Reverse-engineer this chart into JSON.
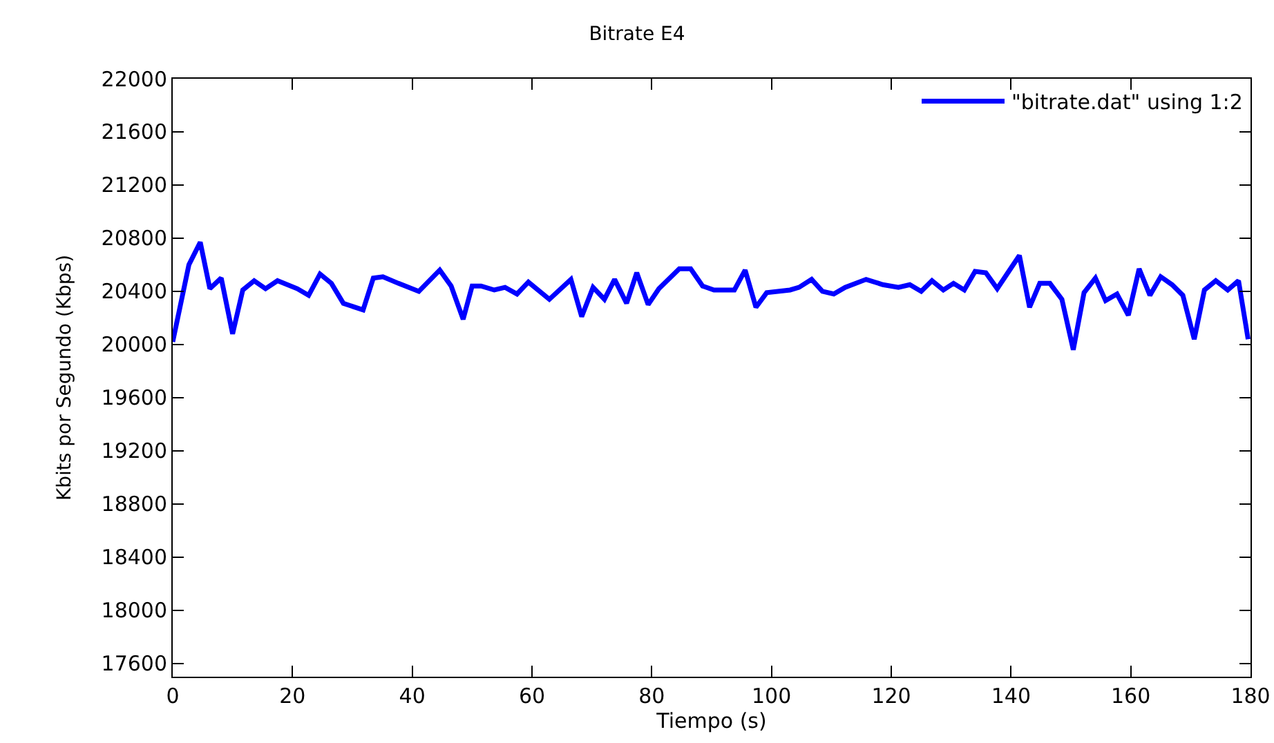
{
  "chart_data": {
    "type": "line",
    "title": "Bitrate E4",
    "xlabel": "Tiempo (s)",
    "ylabel": "Kbits por Segundo (Kbps)",
    "xlim": [
      0,
      180
    ],
    "xticks": [
      0,
      20,
      40,
      60,
      80,
      100,
      120,
      140,
      160,
      180
    ],
    "ylim": [
      17500,
      22000
    ],
    "yticks": [
      17600,
      18000,
      18400,
      18800,
      19200,
      19600,
      20000,
      20400,
      20800,
      21200,
      21600,
      22000
    ],
    "grid": false,
    "legend": "top right",
    "marker": "none",
    "line_style": "solid",
    "x": [
      0,
      2.7,
      4.6,
      6.2,
      8.1,
      10,
      11.7,
      13.6,
      15.5,
      17.5,
      20.8,
      22.7,
      24.6,
      26.5,
      28.5,
      31.8,
      33.5,
      35.1,
      37.7,
      41.1,
      44.6,
      46.5,
      48.5,
      50,
      51.5,
      53.7,
      55.5,
      57.5,
      59.4,
      62.9,
      66.5,
      68.3,
      70.2,
      72.1,
      73.8,
      75.8,
      77.5,
      79.4,
      81.2,
      84.6,
      86.5,
      88.5,
      90.4,
      93.8,
      95.6,
      97.4,
      99.2,
      103.1,
      104.6,
      106.7,
      108.5,
      110.4,
      112.3,
      115.8,
      118.6,
      121.2,
      123.1,
      125,
      126.8,
      128.7,
      130.4,
      132.2,
      134,
      135.8,
      137.7,
      141.4,
      143.1,
      144.8,
      146.5,
      148.5,
      150.4,
      152.2,
      154.1,
      155.8,
      157.7,
      159.6,
      161.4,
      163.2,
      165,
      166.9,
      168.7,
      170.6,
      172.3,
      174.2,
      176.2,
      178,
      179.6
    ],
    "series": [
      {
        "name": "\"bitrate.dat\" using 1:2",
        "color": "#0000ff",
        "values": [
          20020,
          20600,
          20770,
          20420,
          20500,
          20080,
          20410,
          20480,
          20420,
          20480,
          20420,
          20370,
          20530,
          20460,
          20310,
          20260,
          20500,
          20510,
          20460,
          20400,
          20560,
          20440,
          20190,
          20440,
          20440,
          20410,
          20430,
          20380,
          20470,
          20340,
          20490,
          20210,
          20430,
          20340,
          20490,
          20310,
          20540,
          20300,
          20420,
          20570,
          20570,
          20440,
          20410,
          20410,
          20560,
          20280,
          20390,
          20410,
          20430,
          20490,
          20400,
          20380,
          20430,
          20490,
          20450,
          20430,
          20450,
          20400,
          20480,
          20410,
          20460,
          20410,
          20550,
          20540,
          20420,
          20670,
          20280,
          20460,
          20460,
          20340,
          19960,
          20390,
          20500,
          20330,
          20380,
          20220,
          20570,
          20370,
          20510,
          20450,
          20370,
          20040,
          20410,
          20480,
          20410,
          20480,
          20040
        ]
      }
    ]
  }
}
